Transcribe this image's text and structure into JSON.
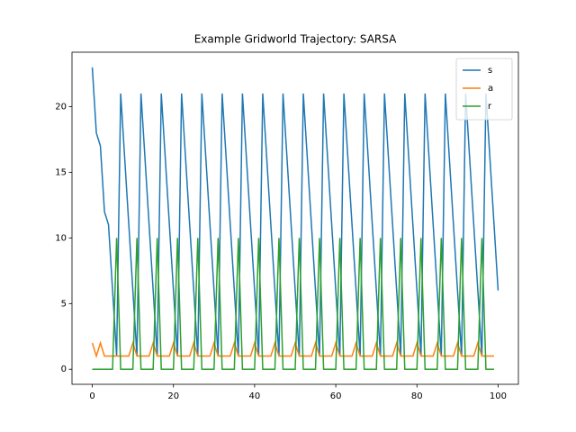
{
  "chart_data": {
    "type": "line",
    "title": "Example Gridworld Trajectory: SARSA",
    "x": [
      0,
      1,
      2,
      3,
      4,
      5,
      6,
      7,
      8,
      9,
      10,
      11,
      12,
      13,
      14,
      15,
      16,
      17,
      18,
      19,
      20,
      21,
      22,
      23,
      24,
      25,
      26,
      27,
      28,
      29,
      30,
      31,
      32,
      33,
      34,
      35,
      36,
      37,
      38,
      39,
      40,
      41,
      42,
      43,
      44,
      45,
      46,
      47,
      48,
      49,
      50,
      51,
      52,
      53,
      54,
      55,
      56,
      57,
      58,
      59,
      60,
      61,
      62,
      63,
      64,
      65,
      66,
      67,
      68,
      69,
      70,
      71,
      72,
      73,
      74,
      75,
      76,
      77,
      78,
      79,
      80,
      81,
      82,
      83,
      84,
      85,
      86,
      87,
      88,
      89,
      90,
      91,
      92,
      93,
      94,
      95,
      96,
      97,
      98,
      99,
      100
    ],
    "series": [
      {
        "name": "s",
        "color": "#1f77b4",
        "values": [
          23,
          18,
          17,
          12,
          11,
          6,
          1,
          21,
          16,
          11,
          6,
          1,
          21,
          16,
          11,
          6,
          1,
          21,
          16,
          11,
          6,
          1,
          21,
          16,
          11,
          6,
          1,
          21,
          16,
          11,
          6,
          1,
          21,
          16,
          11,
          6,
          1,
          21,
          16,
          11,
          6,
          1,
          21,
          16,
          11,
          6,
          1,
          21,
          16,
          11,
          6,
          1,
          21,
          16,
          11,
          6,
          1,
          21,
          16,
          11,
          6,
          1,
          21,
          16,
          11,
          6,
          1,
          21,
          16,
          11,
          6,
          1,
          21,
          16,
          11,
          6,
          1,
          21,
          16,
          11,
          6,
          1,
          21,
          16,
          11,
          6,
          1,
          21,
          16,
          11,
          6,
          1,
          21,
          16,
          11,
          6,
          1,
          21,
          16,
          11,
          6
        ]
      },
      {
        "name": "a",
        "color": "#ff7f0e",
        "values": [
          2,
          1,
          2,
          1,
          1,
          1,
          1,
          1,
          1,
          1,
          2,
          1,
          1,
          1,
          1,
          2,
          1,
          1,
          1,
          1,
          2,
          1,
          1,
          1,
          1,
          2,
          1,
          1,
          1,
          1,
          2,
          1,
          1,
          1,
          1,
          2,
          1,
          1,
          1,
          1,
          2,
          1,
          1,
          1,
          1,
          2,
          1,
          1,
          1,
          1,
          2,
          1,
          1,
          1,
          1,
          2,
          1,
          1,
          1,
          1,
          2,
          1,
          1,
          1,
          1,
          2,
          1,
          1,
          1,
          1,
          2,
          1,
          1,
          1,
          1,
          2,
          1,
          1,
          1,
          1,
          2,
          1,
          1,
          1,
          1,
          2,
          1,
          1,
          1,
          1,
          2,
          1,
          1,
          1,
          1,
          2,
          1,
          1,
          1,
          1,
          null
        ]
      },
      {
        "name": "r",
        "color": "#2ca02c",
        "values": [
          0,
          0,
          0,
          0,
          0,
          0,
          10,
          0,
          0,
          0,
          0,
          10,
          0,
          0,
          0,
          0,
          10,
          0,
          0,
          0,
          0,
          10,
          0,
          0,
          0,
          0,
          10,
          0,
          0,
          0,
          0,
          10,
          0,
          0,
          0,
          0,
          10,
          0,
          0,
          0,
          0,
          10,
          0,
          0,
          0,
          0,
          10,
          0,
          0,
          0,
          0,
          10,
          0,
          0,
          0,
          0,
          10,
          0,
          0,
          0,
          0,
          10,
          0,
          0,
          0,
          0,
          10,
          0,
          0,
          0,
          0,
          10,
          0,
          0,
          0,
          0,
          10,
          0,
          0,
          0,
          0,
          10,
          0,
          0,
          0,
          0,
          10,
          0,
          0,
          0,
          0,
          10,
          0,
          0,
          0,
          0,
          10,
          0,
          0,
          0,
          null
        ]
      }
    ],
    "xlim": [
      -5,
      105
    ],
    "ylim": [
      -1.15,
      24.15
    ],
    "xticks": [
      0,
      20,
      40,
      60,
      80,
      100
    ],
    "yticks": [
      0,
      5,
      10,
      15,
      20
    ],
    "legend": "upper right"
  }
}
